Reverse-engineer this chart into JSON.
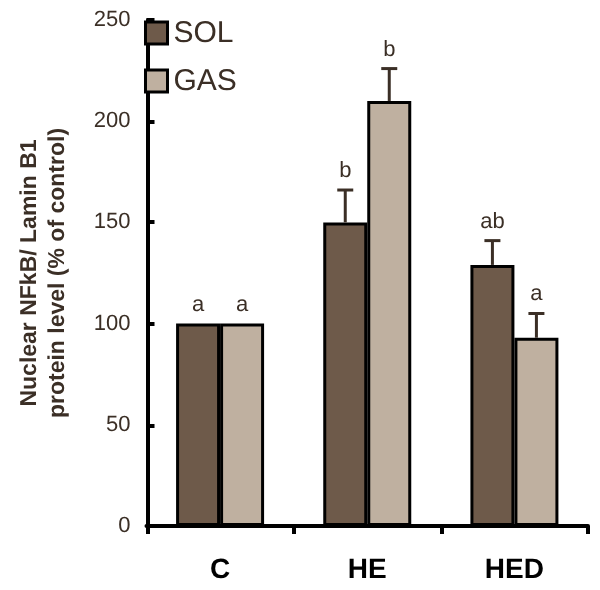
{
  "chart_data": {
    "type": "bar",
    "ylabel": "Nuclear NFkB/ Lamin B1\nprotein level (% of control)",
    "categories": [
      "C",
      "HE",
      "HED"
    ],
    "series": [
      {
        "name": "SOL",
        "color": "#6e5a4a",
        "values": [
          100,
          150,
          129
        ],
        "errors": [
          null,
          16,
          12
        ],
        "value_labels": [
          "a",
          "b",
          "ab"
        ]
      },
      {
        "name": "GAS",
        "color": "#bfb0a0",
        "values": [
          100,
          210,
          93
        ],
        "errors": [
          null,
          16,
          12
        ],
        "value_labels": [
          "a",
          "b",
          "a"
        ]
      }
    ],
    "ylim": [
      0,
      250
    ],
    "yticks": [
      0,
      50,
      100,
      150,
      200,
      250
    ],
    "grid": false,
    "legend": "top left"
  }
}
